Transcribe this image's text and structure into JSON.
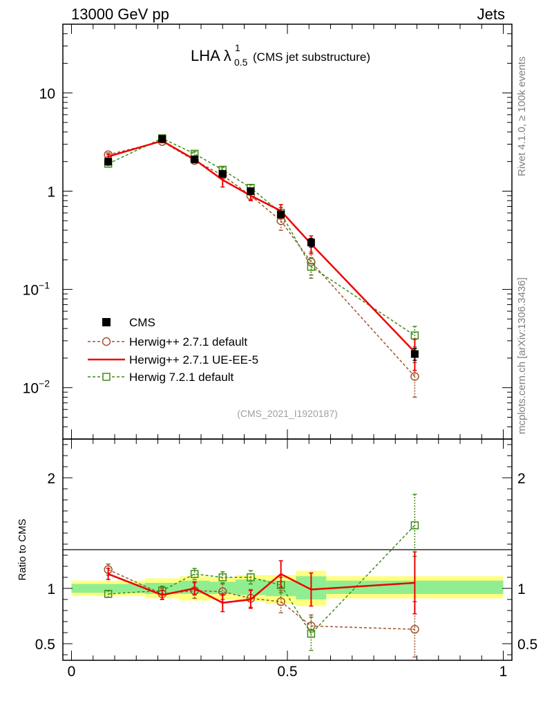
{
  "header": {
    "left": "13000 GeV pp",
    "right": "Jets"
  },
  "side_text": {
    "top": "Rivet 4.1.0, ≥ 100k events",
    "bottom": "mcplots.cern.ch [arXiv:1306.3436]"
  },
  "chart_data": [
    {
      "type": "line",
      "title_main": "LHA λ",
      "title_sup": "1",
      "title_sub": "0.5",
      "title_paren": "(CMS jet substructure)",
      "watermark": "(CMS_2021_I1920187)",
      "ylog": true,
      "ylim": [
        0.003,
        50
      ],
      "xlim": [
        -0.02,
        1.02
      ],
      "ytick_labels": [
        {
          "value": 10,
          "mantissa": "10",
          "exp": ""
        },
        {
          "value": 1,
          "mantissa": "1",
          "exp": ""
        },
        {
          "value": 0.1,
          "mantissa": "10",
          "exp": "−1"
        },
        {
          "value": 0.01,
          "mantissa": "10",
          "exp": "−2"
        }
      ],
      "x": [
        0.085,
        0.21,
        0.285,
        0.35,
        0.415,
        0.485,
        0.555,
        0.795
      ],
      "series": [
        {
          "name": "CMS",
          "style": "data",
          "color": "#000000",
          "values": [
            2.0,
            3.4,
            2.1,
            1.5,
            1.0,
            0.58,
            0.3,
            0.022
          ],
          "err": [
            0.1,
            0.15,
            0.1,
            0.08,
            0.06,
            0.04,
            0.03,
            0.003
          ]
        },
        {
          "name": "Herwig++ 2.7.1 default",
          "style": "circle",
          "color": "#a0522d",
          "values": [
            2.35,
            3.2,
            2.05,
            1.45,
            0.9,
            0.5,
            0.19,
            0.013
          ],
          "err": [
            0.1,
            0.1,
            0.1,
            0.08,
            0.08,
            0.1,
            0.05,
            0.005
          ]
        },
        {
          "name": "Herwig++ 2.7.1 UE-EE-5",
          "style": "line",
          "color": "#ee0000",
          "values": [
            2.25,
            3.25,
            2.1,
            1.3,
            0.9,
            0.63,
            0.29,
            0.023
          ],
          "err": [
            0.12,
            0.12,
            0.15,
            0.2,
            0.1,
            0.1,
            0.06,
            0.008
          ]
        },
        {
          "name": "Herwig 7.2.1 default",
          "style": "square",
          "color": "#3c8c14",
          "values": [
            1.9,
            3.45,
            2.4,
            1.65,
            1.08,
            0.6,
            0.17,
            0.034
          ],
          "err": [
            0.08,
            0.12,
            0.12,
            0.1,
            0.08,
            0.08,
            0.04,
            0.008
          ]
        }
      ]
    },
    {
      "type": "line",
      "ylabel": "Ratio to CMS",
      "ylim": [
        0.35,
        2.35
      ],
      "xlim": [
        -0.02,
        1.02
      ],
      "ytick_labels": [
        {
          "value": 2,
          "label": "2"
        },
        {
          "value": 1,
          "label": "1"
        },
        {
          "value": 0.5,
          "label": "0.5"
        }
      ],
      "xtick_labels": [
        {
          "value": 0,
          "label": "0"
        },
        {
          "value": 0.5,
          "label": "0.5"
        },
        {
          "value": 1,
          "label": "1"
        }
      ],
      "bands": [
        {
          "x0": 0.0,
          "x1": 0.17,
          "green": [
            0.96,
            1.04
          ],
          "yellow": [
            0.93,
            1.07
          ]
        },
        {
          "x0": 0.17,
          "x1": 0.25,
          "green": [
            0.95,
            1.05
          ],
          "yellow": [
            0.91,
            1.09
          ]
        },
        {
          "x0": 0.25,
          "x1": 0.32,
          "green": [
            0.95,
            1.07
          ],
          "yellow": [
            0.89,
            1.11
          ]
        },
        {
          "x0": 0.32,
          "x1": 0.38,
          "green": [
            0.95,
            1.06
          ],
          "yellow": [
            0.9,
            1.1
          ]
        },
        {
          "x0": 0.38,
          "x1": 0.45,
          "green": [
            0.94,
            1.08
          ],
          "yellow": [
            0.88,
            1.12
          ]
        },
        {
          "x0": 0.45,
          "x1": 0.52,
          "green": [
            0.93,
            1.07
          ],
          "yellow": [
            0.86,
            1.12
          ]
        },
        {
          "x0": 0.52,
          "x1": 0.59,
          "green": [
            0.9,
            1.11
          ],
          "yellow": [
            0.84,
            1.16
          ]
        },
        {
          "x0": 0.59,
          "x1": 1.0,
          "green": [
            0.95,
            1.07
          ],
          "yellow": [
            0.91,
            1.11
          ]
        }
      ],
      "x": [
        0.085,
        0.21,
        0.285,
        0.35,
        0.415,
        0.485,
        0.555,
        0.795
      ],
      "series": [
        {
          "name": "Herwig++ 2.7.1 default",
          "style": "circle",
          "color": "#a0522d",
          "values": [
            1.17,
            0.95,
            0.98,
            0.97,
            0.91,
            0.88,
            0.66,
            0.63
          ],
          "err": [
            0.05,
            0.05,
            0.07,
            0.07,
            0.08,
            0.1,
            0.1,
            0.25
          ]
        },
        {
          "name": "Herwig++ 2.7.1 UE-EE-5",
          "style": "line",
          "color": "#ee0000",
          "values": [
            1.13,
            0.94,
            1.0,
            0.87,
            0.9,
            1.13,
            0.99,
            1.05
          ],
          "err": [
            0.05,
            0.04,
            0.06,
            0.08,
            0.08,
            0.12,
            0.15,
            0.28
          ]
        },
        {
          "name": "Herwig 7.2.1 default",
          "style": "square",
          "color": "#3c8c14",
          "values": [
            0.95,
            0.98,
            1.13,
            1.1,
            1.1,
            1.03,
            0.59,
            1.57
          ],
          "err": [
            0.03,
            0.04,
            0.05,
            0.05,
            0.06,
            0.07,
            0.15,
            0.28
          ]
        }
      ]
    }
  ]
}
